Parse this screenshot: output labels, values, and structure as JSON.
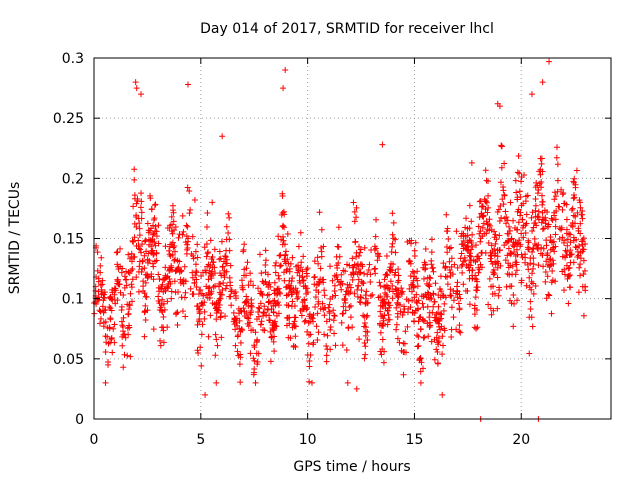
{
  "chart_data": {
    "type": "scatter",
    "title": "Day 014 of 2017, SRMTID for receiver lhcl",
    "xlabel": "GPS time / hours",
    "ylabel": "SRMTID / TECUs",
    "xlim": [
      0,
      24.2
    ],
    "ylim": [
      0,
      0.3
    ],
    "x_ticks": [
      0,
      5,
      10,
      15,
      20
    ],
    "x_tick_labels": [
      "0",
      "5",
      "10",
      "15",
      "20"
    ],
    "y_ticks": [
      0,
      0.05,
      0.1,
      0.15,
      0.2,
      0.25,
      0.3
    ],
    "y_tick_labels": [
      "0",
      "0.05",
      "0.1",
      "0.15",
      "0.2",
      "0.25",
      "0.3"
    ],
    "grid": true,
    "marker": "plus",
    "color": "#ff0000",
    "x_extent_hours": [
      0,
      23
    ],
    "mean_profile": [
      [
        0,
        0.085
      ],
      [
        1,
        0.095
      ],
      [
        1.8,
        0.13
      ],
      [
        2.2,
        0.15
      ],
      [
        3,
        0.12
      ],
      [
        4,
        0.13
      ],
      [
        4.5,
        0.14
      ],
      [
        5,
        0.11
      ],
      [
        6,
        0.11
      ],
      [
        7,
        0.085
      ],
      [
        8,
        0.09
      ],
      [
        9,
        0.12
      ],
      [
        10,
        0.095
      ],
      [
        11,
        0.1
      ],
      [
        12,
        0.11
      ],
      [
        13,
        0.115
      ],
      [
        14,
        0.105
      ],
      [
        15,
        0.1
      ],
      [
        16,
        0.09
      ],
      [
        17,
        0.12
      ],
      [
        18,
        0.14
      ],
      [
        19,
        0.155
      ],
      [
        20,
        0.15
      ],
      [
        21,
        0.15
      ],
      [
        22,
        0.16
      ],
      [
        23,
        0.15
      ]
    ],
    "point_count": 2000,
    "notable_points": [
      [
        1.95,
        0.28
      ],
      [
        2.0,
        0.275
      ],
      [
        2.2,
        0.27
      ],
      [
        4.4,
        0.278
      ],
      [
        8.95,
        0.29
      ],
      [
        8.85,
        0.275
      ],
      [
        13.5,
        0.228
      ],
      [
        21.3,
        0.297
      ],
      [
        21.0,
        0.28
      ],
      [
        19.0,
        0.26
      ],
      [
        18.9,
        0.262
      ],
      [
        20.5,
        0.27
      ],
      [
        5.2,
        0.02
      ],
      [
        16.3,
        0.02
      ],
      [
        12.3,
        0.025
      ],
      [
        18.1,
        0.0
      ],
      [
        20.8,
        0.0
      ],
      [
        6.0,
        0.235
      ]
    ]
  }
}
